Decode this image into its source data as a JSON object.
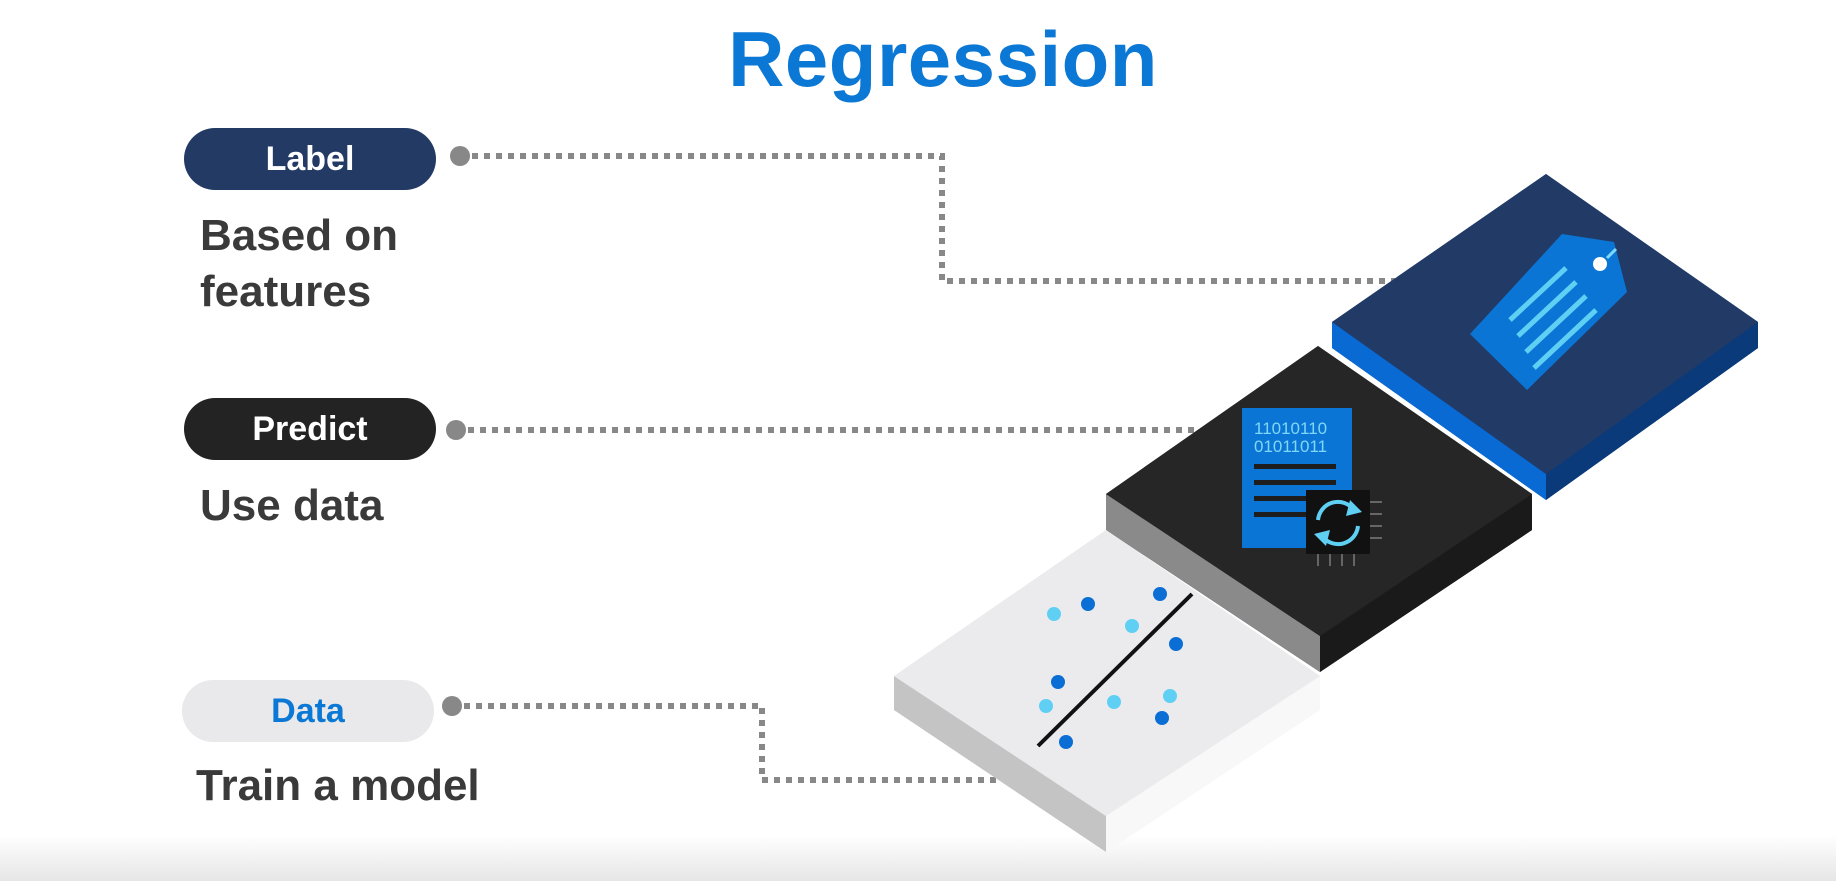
{
  "title": "Regression",
  "items": [
    {
      "pill": "Label",
      "description_lines": [
        "Based on",
        "features"
      ]
    },
    {
      "pill": "Predict",
      "description_lines": [
        "Use data"
      ]
    },
    {
      "pill": "Data",
      "description_lines": [
        "Train a model"
      ]
    }
  ],
  "binary_lines": [
    "11010110",
    "01011011"
  ],
  "colors": {
    "title": "#0a78d4",
    "label_pill": "#233a64",
    "predict_pill": "#232323",
    "data_pill": "#e9e9eb",
    "connector": "#888888"
  },
  "icons": [
    "price-tag-icon",
    "binary-document-icon",
    "sync-chip-icon",
    "scatter-regression-icon"
  ]
}
